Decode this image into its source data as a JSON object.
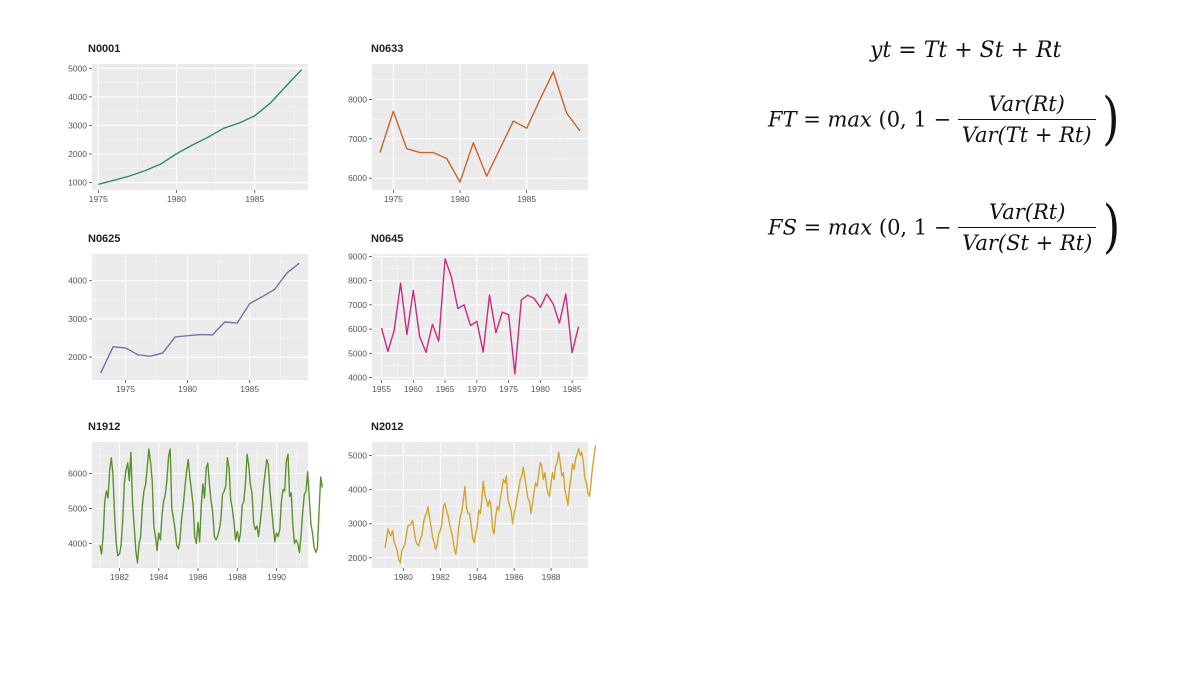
{
  "chart_data": [
    {
      "type": "line",
      "title": "N0001",
      "color": "#2e8b6a",
      "x": [
        1975,
        1976,
        1977,
        1978,
        1979,
        1980,
        1981,
        1982,
        1983,
        1984,
        1985,
        1986,
        1987,
        1988
      ],
      "values": [
        940,
        1080,
        1230,
        1420,
        1650,
        2010,
        2310,
        2580,
        2900,
        3080,
        3340,
        3780,
        4380,
        4950
      ],
      "xticks": [
        1975,
        1980,
        1985
      ],
      "yticks": [
        1000,
        2000,
        3000,
        4000,
        5000
      ],
      "xlim": [
        1974.6,
        1988.4
      ],
      "ylim": [
        740,
        5150
      ]
    },
    {
      "type": "line",
      "title": "N0633",
      "color": "#c5672a",
      "x": [
        1974,
        1975,
        1976,
        1977,
        1978,
        1979,
        1980,
        1981,
        1982,
        1983,
        1984,
        1985,
        1986,
        1987,
        1988,
        1989
      ],
      "values": [
        6650,
        7700,
        6750,
        6650,
        6650,
        6500,
        5900,
        6900,
        6050,
        6750,
        7450,
        7270,
        8000,
        8700,
        7650,
        7200
      ],
      "xticks": [
        1975,
        1980,
        1985
      ],
      "yticks": [
        6000,
        7000,
        8000
      ],
      "xlim": [
        1973.4,
        1989.6
      ],
      "ylim": [
        5700,
        8900
      ]
    },
    {
      "type": "line",
      "title": "N0625",
      "color": "#7a70a8",
      "x": [
        1973,
        1974,
        1975,
        1976,
        1977,
        1978,
        1979,
        1980,
        1981,
        1982,
        1983,
        1984,
        1985,
        1986,
        1987,
        1988,
        1989
      ],
      "values": [
        1580,
        2270,
        2240,
        2060,
        2020,
        2110,
        2530,
        2560,
        2590,
        2580,
        2920,
        2890,
        3400,
        3580,
        3770,
        4200,
        4460
      ],
      "xticks": [
        1975,
        1980,
        1985
      ],
      "yticks": [
        2000,
        3000,
        4000
      ],
      "xlim": [
        1972.3,
        1989.7
      ],
      "ylim": [
        1400,
        4700
      ]
    },
    {
      "type": "line",
      "title": "N0645",
      "color": "#cc2a7e",
      "x": [
        1955,
        1956,
        1957,
        1958,
        1959,
        1960,
        1961,
        1962,
        1963,
        1964,
        1965,
        1966,
        1967,
        1968,
        1969,
        1970,
        1971,
        1972,
        1973,
        1974,
        1975,
        1976,
        1977,
        1978,
        1979,
        1980,
        1981,
        1982,
        1983,
        1984,
        1985,
        1986
      ],
      "values": [
        6050,
        5080,
        5950,
        7900,
        5780,
        7600,
        5700,
        5040,
        6200,
        5500,
        8900,
        8150,
        6850,
        7000,
        6150,
        6320,
        5050,
        7400,
        5850,
        6700,
        6600,
        4150,
        7200,
        7400,
        7270,
        6900,
        7450,
        7050,
        6250,
        7450,
        5030,
        6100
      ],
      "xticks": [
        1955,
        1960,
        1965,
        1970,
        1975,
        1980,
        1985
      ],
      "yticks": [
        4000,
        5000,
        6000,
        7000,
        8000,
        9000
      ],
      "xlim": [
        1953.5,
        1987.5
      ],
      "ylim": [
        3900,
        9100
      ]
    },
    {
      "type": "line",
      "title": "N1912",
      "color": "#5a922e",
      "x_start": 1981.0,
      "x_step": 0.0833,
      "values": [
        3950,
        3700,
        4200,
        5200,
        5500,
        5300,
        6100,
        6450,
        6000,
        4800,
        4000,
        3650,
        3700,
        3950,
        4700,
        5750,
        6100,
        6300,
        5800,
        6600,
        5100,
        4500,
        3800,
        3450,
        4000,
        4200,
        5100,
        5500,
        5700,
        6200,
        6700,
        6300,
        5800,
        4500,
        4200,
        3800,
        4300,
        4100,
        4800,
        5200,
        5400,
        5800,
        6500,
        6700,
        5000,
        4700,
        4400,
        3950,
        3850,
        4100,
        4700,
        5100,
        5600,
        6050,
        6400,
        5900,
        5500,
        5100,
        4200,
        4000,
        4600,
        4050,
        5100,
        5700,
        5300,
        6150,
        6300,
        5700,
        5200,
        4900,
        4200,
        4100,
        4200,
        4400,
        4700,
        5400,
        5500,
        5650,
        6450,
        6150,
        5250,
        5000,
        4600,
        4100,
        4350,
        4050,
        4300,
        5100,
        5200,
        5700,
        6550,
        6250,
        5700,
        5450,
        4600,
        4400,
        4500,
        4200,
        4600,
        5000,
        5600,
        6000,
        6400,
        6250,
        5500,
        5000,
        4500,
        4050,
        4300,
        4200,
        4400,
        5200,
        5550,
        5500,
        6350,
        6550,
        5350,
        5450,
        4500,
        4000,
        4100,
        4000,
        3750,
        4200,
        4900,
        5400,
        5500,
        6050,
        5350,
        4550,
        4300,
        3900,
        3750,
        3850,
        4900,
        5900,
        5600
      ],
      "xticks": [
        1982,
        1984,
        1986,
        1988,
        1990
      ],
      "yticks": [
        4000,
        5000,
        6000
      ],
      "xlim": [
        1980.6,
        1991.6
      ],
      "ylim": [
        3300,
        6900
      ]
    },
    {
      "type": "line",
      "title": "N2012",
      "color": "#d4a52a",
      "x_start": 1979.0,
      "x_step": 0.0833,
      "values": [
        2300,
        2550,
        2850,
        2700,
        2650,
        2800,
        2450,
        2350,
        2200,
        1950,
        1850,
        2200,
        2300,
        2400,
        2700,
        2950,
        2950,
        3000,
        3100,
        2800,
        2500,
        2400,
        2350,
        2550,
        2650,
        3000,
        3200,
        3300,
        3500,
        3200,
        2900,
        2600,
        2450,
        2250,
        2400,
        2700,
        2800,
        3000,
        3500,
        3600,
        3400,
        3250,
        3000,
        2800,
        2600,
        2300,
        2100,
        2400,
        2900,
        3200,
        3350,
        3700,
        4100,
        3500,
        3300,
        3300,
        3000,
        2600,
        2450,
        2700,
        2900,
        3400,
        3300,
        3700,
        4250,
        3850,
        3700,
        3500,
        3700,
        3500,
        2850,
        2700,
        3200,
        3500,
        3400,
        3750,
        4000,
        4300,
        4200,
        4400,
        3700,
        3550,
        3400,
        3000,
        3300,
        3500,
        3800,
        4000,
        4300,
        4400,
        4650,
        4350,
        4050,
        3750,
        3650,
        3300,
        3600,
        3950,
        4200,
        4100,
        4450,
        4800,
        4700,
        4300,
        4500,
        4150,
        3900,
        3800,
        4200,
        4500,
        4300,
        4700,
        4800,
        5100,
        4800,
        4400,
        4500,
        4000,
        3800,
        3550,
        4050,
        4350,
        4750,
        4600,
        4900,
        5050,
        5200,
        5000,
        5100,
        4800,
        4350,
        4200,
        3900,
        3800,
        4200,
        4650,
        5000,
        5300
      ],
      "xticks": [
        1980,
        1982,
        1984,
        1986,
        1988
      ],
      "yticks": [
        2000,
        3000,
        4000,
        5000
      ],
      "xlim": [
        1978.3,
        1990.0
      ],
      "ylim": [
        1700,
        5400
      ]
    }
  ],
  "formulas": {
    "decomposition": "yt = Tt + St + Rt",
    "FT": {
      "lhs": "FT = max",
      "open": "(0, 1 −",
      "num": "Var(Rt)",
      "den": "Var(Tt + Rt)",
      "close": ")"
    },
    "FS": {
      "lhs": "FS = max",
      "open": "(0, 1 −",
      "num": "Var(Rt)",
      "den": "Var(St + Rt)",
      "close": ")"
    }
  }
}
